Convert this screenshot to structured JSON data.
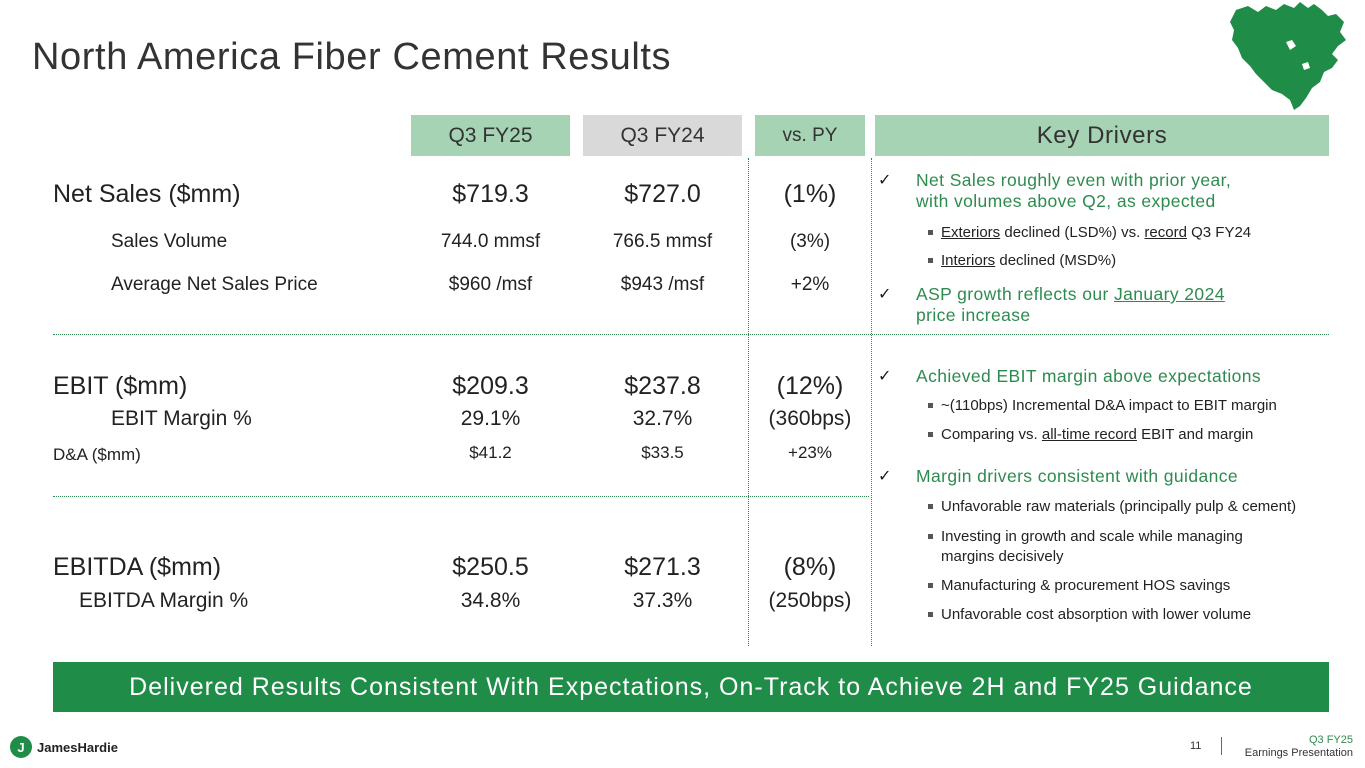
{
  "title": "North America Fiber Cement Results",
  "headers": {
    "q3fy25": "Q3 FY25",
    "q3fy24": "Q3 FY24",
    "vspy": "vs. PY",
    "key_drivers": "Key Drivers"
  },
  "rows": {
    "net_sales": {
      "label": "Net Sales ($mm)",
      "q3fy25": "$719.3",
      "q3fy24": "$727.0",
      "vspy": "(1%)"
    },
    "sales_volume": {
      "label": "Sales Volume",
      "q3fy25": "744.0 mmsf",
      "q3fy24": "766.5 mmsf",
      "vspy": "(3%)"
    },
    "avg_price": {
      "label": "Average Net Sales Price",
      "q3fy25": "$960 /msf",
      "q3fy24": "$943 /msf",
      "vspy": "+2%"
    },
    "ebit": {
      "label": "EBIT ($mm)",
      "q3fy25": "$209.3",
      "q3fy24": "$237.8",
      "vspy": "(12%)"
    },
    "ebit_margin": {
      "label": "EBIT Margin %",
      "q3fy25": "29.1%",
      "q3fy24": "32.7%",
      "vspy": "(360bps)"
    },
    "da": {
      "label": "D&A ($mm)",
      "q3fy25": "$41.2",
      "q3fy24": "$33.5",
      "vspy": "+23%"
    },
    "ebitda": {
      "label": "EBITDA ($mm)",
      "q3fy25": "$250.5",
      "q3fy24": "$271.3",
      "vspy": "(8%)"
    },
    "ebitda_margin": {
      "label": "EBITDA Margin %",
      "q3fy25": "34.8%",
      "q3fy24": "37.3%",
      "vspy": "(250bps)"
    }
  },
  "drivers": {
    "d1": {
      "line1": "Net Sales roughly even with prior year,",
      "line2": "with volumes above Q2, as expected"
    },
    "d1_sub1": {
      "u1": "Exteriors",
      "t1": " declined (LSD%) vs. ",
      "u2": "record",
      "t2": " Q3 FY24"
    },
    "d1_sub2": {
      "u1": "Interiors",
      "t1": " declined (MSD%)"
    },
    "d2": {
      "t1": "ASP growth reflects our ",
      "u1": "January 2024",
      "line2": "price increase"
    },
    "d3": {
      "text": "Achieved EBIT margin above expectations"
    },
    "d3_sub1": {
      "text": "~(110bps) Incremental D&A impact to EBIT margin"
    },
    "d3_sub2": {
      "t1": "Comparing vs. ",
      "u1": "all-time record",
      "t2": " EBIT and margin"
    },
    "d4": {
      "text": "Margin drivers consistent with guidance"
    },
    "d4_sub1": {
      "text": "Unfavorable raw materials (principally pulp & cement)"
    },
    "d4_sub2": {
      "line1": "Investing in growth and scale while managing",
      "line2": "margins decisively"
    },
    "d4_sub3": {
      "text": "Manufacturing & procurement HOS savings"
    },
    "d4_sub4": {
      "text": "Unfavorable cost absorption with lower volume"
    }
  },
  "banner": "Delivered Results Consistent With Expectations, On-Track to Achieve 2H and FY25 Guidance",
  "footer": {
    "logo_text": "JamesHardie",
    "page_number": "11",
    "line1": "Q3 FY25",
    "line2": "Earnings Presentation"
  },
  "colors": {
    "green": "#1f8c48",
    "light_green": "#a6d3b3",
    "gray": "#d9d9d9",
    "accent_text": "#2e8b4f"
  },
  "icons": {
    "map": "north-america-map-icon",
    "check": "checkmark-icon",
    "bullet": "square-bullet-icon",
    "logo": "james-hardie-logo-icon"
  }
}
